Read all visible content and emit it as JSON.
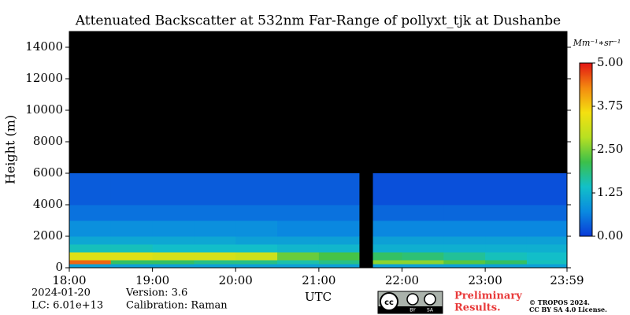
{
  "chart_data": {
    "type": "heatmap",
    "title": "Attenuated Backscatter at 532nm Far-Range of pollyxt_tjk at Dushanbe",
    "ylabel": "Height (m)",
    "xlabel": "UTC",
    "xlim": [
      "18:00",
      "23:59"
    ],
    "xticks": [
      "18:00",
      "19:00",
      "20:00",
      "21:00",
      "22:00",
      "23:00",
      "23:59"
    ],
    "ylim": [
      0,
      15000
    ],
    "yticks": [
      0,
      2000,
      4000,
      6000,
      8000,
      10000,
      12000,
      14000
    ],
    "x_edges": [
      "18:00",
      "18:30",
      "19:00",
      "19:30",
      "20:00",
      "20:30",
      "21:00",
      "21:29",
      "21:39",
      "22:00",
      "22:30",
      "23:00",
      "23:30",
      "23:59"
    ],
    "y_edges": [
      0,
      250,
      500,
      1000,
      1500,
      2000,
      3000,
      4000,
      6000,
      8000,
      10000,
      15000
    ],
    "z": [
      [
        1.0,
        1.0,
        1.0,
        1.0,
        1.0,
        1.0,
        1.0,
        null,
        1.0,
        1.0,
        1.0,
        1.0,
        1.0
      ],
      [
        4.5,
        2.0,
        2.0,
        1.8,
        1.8,
        1.6,
        1.8,
        null,
        2.6,
        2.6,
        2.3,
        2.0,
        1.5
      ],
      [
        3.3,
        3.3,
        3.2,
        3.2,
        3.1,
        2.4,
        2.2,
        null,
        2.0,
        1.9,
        1.7,
        1.5,
        1.4
      ],
      [
        1.5,
        1.5,
        1.4,
        1.4,
        1.4,
        1.3,
        1.3,
        null,
        1.2,
        1.2,
        1.2,
        1.2,
        1.2
      ],
      [
        1.1,
        1.1,
        1.1,
        1.1,
        1.0,
        1.0,
        1.0,
        null,
        1.0,
        1.0,
        1.0,
        1.0,
        1.0
      ],
      [
        0.8,
        0.8,
        0.8,
        0.8,
        0.8,
        0.7,
        0.7,
        null,
        0.7,
        0.7,
        0.7,
        0.7,
        0.7
      ],
      [
        0.5,
        0.5,
        0.5,
        0.5,
        0.5,
        0.5,
        0.5,
        null,
        0.4,
        0.4,
        0.4,
        0.4,
        0.4
      ],
      [
        0.3,
        0.3,
        0.3,
        0.3,
        0.3,
        0.3,
        0.3,
        null,
        0.2,
        0.2,
        0.2,
        0.2,
        0.2
      ],
      [
        null,
        null,
        null,
        null,
        null,
        null,
        null,
        null,
        null,
        null,
        null,
        null,
        null
      ],
      [
        null,
        null,
        null,
        null,
        null,
        null,
        null,
        null,
        null,
        null,
        null,
        null,
        null
      ],
      [
        null,
        null,
        null,
        null,
        null,
        null,
        null,
        null,
        null,
        null,
        null,
        null,
        null
      ]
    ],
    "zlim": [
      0,
      5
    ],
    "colormap": [
      "#0a3ad8",
      "#0a8ae0",
      "#12c0c8",
      "#3cc04a",
      "#b8e022",
      "#f4e010",
      "#f48a10",
      "#e21414"
    ],
    "colorbar_label": "Mm⁻¹∗sr⁻¹",
    "colorbar_ticks": [
      {
        "value": 0,
        "label": "0.00"
      },
      {
        "value": 1.25,
        "label": "1.25"
      },
      {
        "value": 2.5,
        "label": "2.50"
      },
      {
        "value": 3.75,
        "label": "3.75"
      },
      {
        "value": 5,
        "label": "5.00"
      }
    ]
  },
  "footer": {
    "date": "2024-01-20",
    "lc": "LC: 6.01e+13",
    "version": "Version: 3.6",
    "calibration": "Calibration: Raman",
    "preliminary": [
      "Preliminary",
      "Results."
    ],
    "copyright": "© TROPOS 2024.",
    "license": "CC BY SA 4.0 License.",
    "badge": [
      "cc",
      "BY",
      "SA"
    ]
  }
}
